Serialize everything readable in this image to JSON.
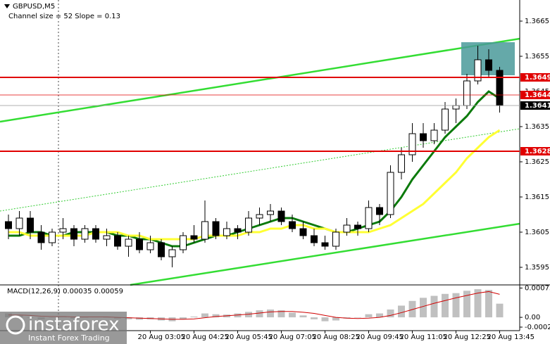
{
  "chart_data": [
    {
      "type": "candlestick",
      "title": "GBPUSD,M5",
      "subtitle": "Channel size = 52 Slope = 0.13",
      "categories": [
        null,
        null,
        null,
        null,
        null,
        null,
        null,
        null,
        null,
        null,
        null,
        null,
        null,
        "20 Aug 03:05",
        null,
        null,
        null,
        "20 Aug 04:25",
        null,
        null,
        null,
        "20 Aug 05:45",
        null,
        null,
        null,
        "20 Aug 07:05",
        null,
        null,
        null,
        "20 Aug 08:25",
        null,
        null,
        null,
        "20 Aug 09:45",
        null,
        null,
        null,
        "20 Aug 11:05",
        null,
        null,
        null,
        "20 Aug 12:25",
        null,
        null,
        null,
        "20 Aug 13:45"
      ],
      "open": [
        1.3608,
        1.3606,
        1.3609,
        1.3605,
        1.3602,
        1.3605,
        1.3606,
        1.3603,
        1.3606,
        1.3603,
        1.3604,
        1.3601,
        1.3603,
        1.36,
        1.3602,
        1.3598,
        1.36,
        1.3604,
        1.3603,
        1.3608,
        1.3604,
        1.3606,
        1.3605,
        1.3609,
        1.361,
        1.3611,
        1.3608,
        1.3606,
        1.3604,
        1.3602,
        1.3601,
        1.3605,
        1.3607,
        1.3606,
        1.3612,
        1.361,
        1.3622,
        1.3627,
        1.3633,
        1.3631,
        1.3634,
        1.364,
        1.3641,
        1.3648,
        1.3654,
        1.3651
      ],
      "high": [
        1.361,
        1.3611,
        1.3611,
        1.3607,
        1.3606,
        1.3609,
        1.3607,
        1.3607,
        1.3607,
        1.3606,
        1.3605,
        1.3604,
        1.3605,
        1.3604,
        1.3603,
        1.3601,
        1.3605,
        1.3607,
        1.3614,
        1.3609,
        1.3608,
        1.3607,
        1.3611,
        1.3612,
        1.3613,
        1.3612,
        1.361,
        1.3608,
        1.3606,
        1.3604,
        1.3606,
        1.3609,
        1.3608,
        1.3614,
        1.3613,
        1.3624,
        1.3629,
        1.3636,
        1.3636,
        1.3636,
        1.3642,
        1.3643,
        1.365,
        1.3658,
        1.3657,
        1.3652
      ],
      "low": [
        1.3603,
        1.3604,
        1.3603,
        1.36,
        1.3601,
        1.3603,
        1.3601,
        1.3602,
        1.3602,
        1.3601,
        1.36,
        1.3598,
        1.3599,
        1.3599,
        1.3597,
        1.3595,
        1.3599,
        1.3602,
        1.3602,
        1.3603,
        1.3603,
        1.3603,
        1.3604,
        1.3607,
        1.3608,
        1.3607,
        1.3605,
        1.3603,
        1.3601,
        1.36,
        1.36,
        1.3604,
        1.3604,
        1.3605,
        1.3607,
        1.3609,
        1.362,
        1.3625,
        1.3629,
        1.363,
        1.3633,
        1.3636,
        1.364,
        1.3647,
        1.3649,
        1.3639
      ],
      "close": [
        1.3606,
        1.3609,
        1.3605,
        1.3602,
        1.3605,
        1.3606,
        1.3603,
        1.3606,
        1.3603,
        1.3604,
        1.3601,
        1.3603,
        1.36,
        1.3602,
        1.3598,
        1.36,
        1.3604,
        1.3603,
        1.3608,
        1.3604,
        1.3606,
        1.3605,
        1.3609,
        1.361,
        1.3611,
        1.3608,
        1.3606,
        1.3604,
        1.3602,
        1.3601,
        1.3605,
        1.3607,
        1.3606,
        1.3612,
        1.361,
        1.3622,
        1.3627,
        1.3633,
        1.3631,
        1.3634,
        1.364,
        1.3641,
        1.3648,
        1.3654,
        1.3651,
        1.3641
      ],
      "series": [
        {
          "color": "#0b7a0b",
          "values": [
            1.3604,
            1.3604,
            1.3605,
            1.3605,
            1.3604,
            1.3604,
            1.3605,
            1.3605,
            1.3605,
            1.3605,
            1.3604,
            1.3604,
            1.3603,
            1.3603,
            1.3602,
            1.3601,
            1.3601,
            1.3602,
            1.3603,
            1.3604,
            1.3604,
            1.3605,
            1.3606,
            1.3607,
            1.3608,
            1.3609,
            1.3609,
            1.3608,
            1.3607,
            1.3606,
            1.3605,
            1.3605,
            1.3606,
            1.3607,
            1.3608,
            1.3611,
            1.3615,
            1.362,
            1.3624,
            1.3628,
            1.3632,
            1.3635,
            1.3638,
            1.3642,
            1.3645,
            1.3643
          ]
        },
        {
          "color": "#ffff33",
          "values": [
            1.3605,
            1.3605,
            1.3604,
            1.3604,
            1.3604,
            1.3604,
            1.3604,
            1.3604,
            1.3605,
            1.3605,
            1.3605,
            1.3604,
            1.3604,
            1.3603,
            1.3603,
            1.3603,
            1.3603,
            1.3603,
            1.3604,
            1.3604,
            1.3604,
            1.3604,
            1.3605,
            1.3605,
            1.3606,
            1.3606,
            1.3607,
            1.3607,
            1.3606,
            1.3606,
            1.3605,
            1.3605,
            1.3605,
            1.3605,
            1.3606,
            1.3607,
            1.3609,
            1.3611,
            1.3613,
            1.3616,
            1.3619,
            1.3622,
            1.3626,
            1.3629,
            1.3632,
            1.3634
          ]
        }
      ],
      "levels": [
        {
          "value": 1.3649,
          "color": "#e00000"
        },
        {
          "value": 1.3644,
          "color": "#e00000"
        },
        {
          "value": 1.3641,
          "color": "#000000"
        },
        {
          "value": 1.3628,
          "color": "#e00000"
        }
      ],
      "ylim": [
        1.359,
        1.3671
      ],
      "yticks": [
        1.3595,
        1.3605,
        1.3615,
        1.3625,
        1.3635,
        1.3645,
        1.3655,
        1.3665
      ]
    },
    {
      "type": "macd",
      "title": "MACD(12,26,9) 0.00035 0.00059",
      "histogram": [
        0.0001,
        5e-05,
        0,
        -5e-05,
        0,
        3e-05,
        -3e-05,
        0,
        2e-05,
        0,
        -3e-05,
        -5e-05,
        -6e-05,
        -5e-05,
        -8e-05,
        -0.0001,
        -5e-05,
        2e-05,
        0.0001,
        8e-05,
        7e-05,
        0.0001,
        0.00014,
        0.00018,
        0.0002,
        0.00018,
        0.00012,
        5e-05,
        -5e-05,
        -0.0001,
        -8e-05,
        -3e-05,
        0,
        8e-05,
        0.0001,
        0.0002,
        0.0003,
        0.00042,
        0.0005,
        0.00055,
        0.0006,
        0.00062,
        0.00068,
        0.00072,
        0.0007,
        0.00035
      ],
      "signal": [
        6e-05,
        6e-05,
        5e-05,
        3e-05,
        2e-05,
        2e-05,
        1e-05,
        1e-05,
        1e-05,
        1e-05,
        0,
        -1e-05,
        -2e-05,
        -3e-05,
        -4e-05,
        -5e-05,
        -5e-05,
        -4e-05,
        -1e-05,
        2e-05,
        4e-05,
        6e-05,
        8e-05,
        0.00011,
        0.00014,
        0.00015,
        0.00015,
        0.00013,
        0.0001,
        5e-05,
        0,
        -2e-05,
        -3e-05,
        -2e-05,
        0,
        5e-05,
        0.00012,
        0.0002,
        0.00028,
        0.00036,
        0.00043,
        0.0005,
        0.00056,
        0.00062,
        0.00066,
        0.00059
      ],
      "histogram_color": "#c0c0c0",
      "signal_color": "#d00000",
      "ylim": [
        -0.00034,
        0.00083
      ],
      "yticks": [
        0.00075,
        {
          "value": 0,
          "label": "0.00"
        },
        -0.00025
      ]
    }
  ],
  "watermark": {
    "brand": "instaforex",
    "tagline": "Instant Forex Trading"
  }
}
